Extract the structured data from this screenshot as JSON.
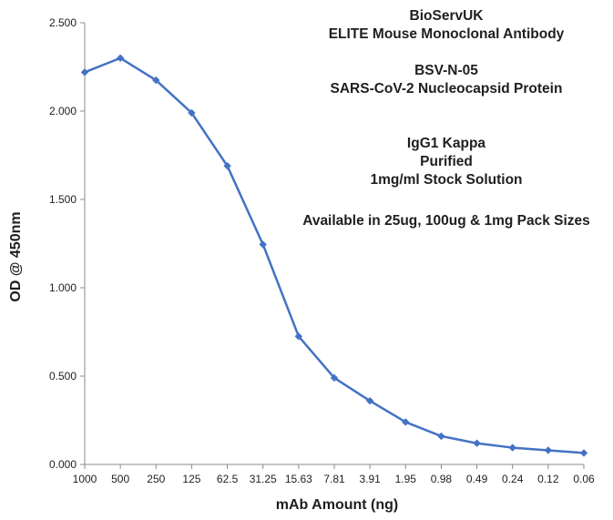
{
  "chart_data": {
    "type": "line",
    "xlabel": "mAb Amount (ng)",
    "ylabel": "OD @ 450nm",
    "categories": [
      "1000",
      "500",
      "250",
      "125",
      "62.5",
      "31.25",
      "15.63",
      "7.81",
      "3.91",
      "1.95",
      "0.98",
      "0.49",
      "0.24",
      "0.12",
      "0.06"
    ],
    "series": [
      {
        "values": [
          2.22,
          2.3,
          2.175,
          1.99,
          1.69,
          1.245,
          0.725,
          0.49,
          0.36,
          0.24,
          0.16,
          0.12,
          0.095,
          0.08,
          0.065
        ]
      }
    ],
    "yticks": [
      "0.000",
      "0.500",
      "1.000",
      "1.500",
      "2.000",
      "2.500"
    ],
    "ylim": [
      0,
      2.5
    ],
    "grid": false,
    "legend": "none",
    "line_color": "#4472c4",
    "annotation": {
      "line1": "BioServUK",
      "line2": "ELITE Mouse Monoclonal Antibody",
      "line3": "BSV-N-05",
      "line4": "SARS-CoV-2 Nucleocapsid Protein",
      "line5": "IgG1 Kappa",
      "line6": "Purified",
      "line7": "1mg/ml  Stock Solution",
      "line8": "Available in 25ug, 100ug & 1mg Pack Sizes"
    }
  }
}
